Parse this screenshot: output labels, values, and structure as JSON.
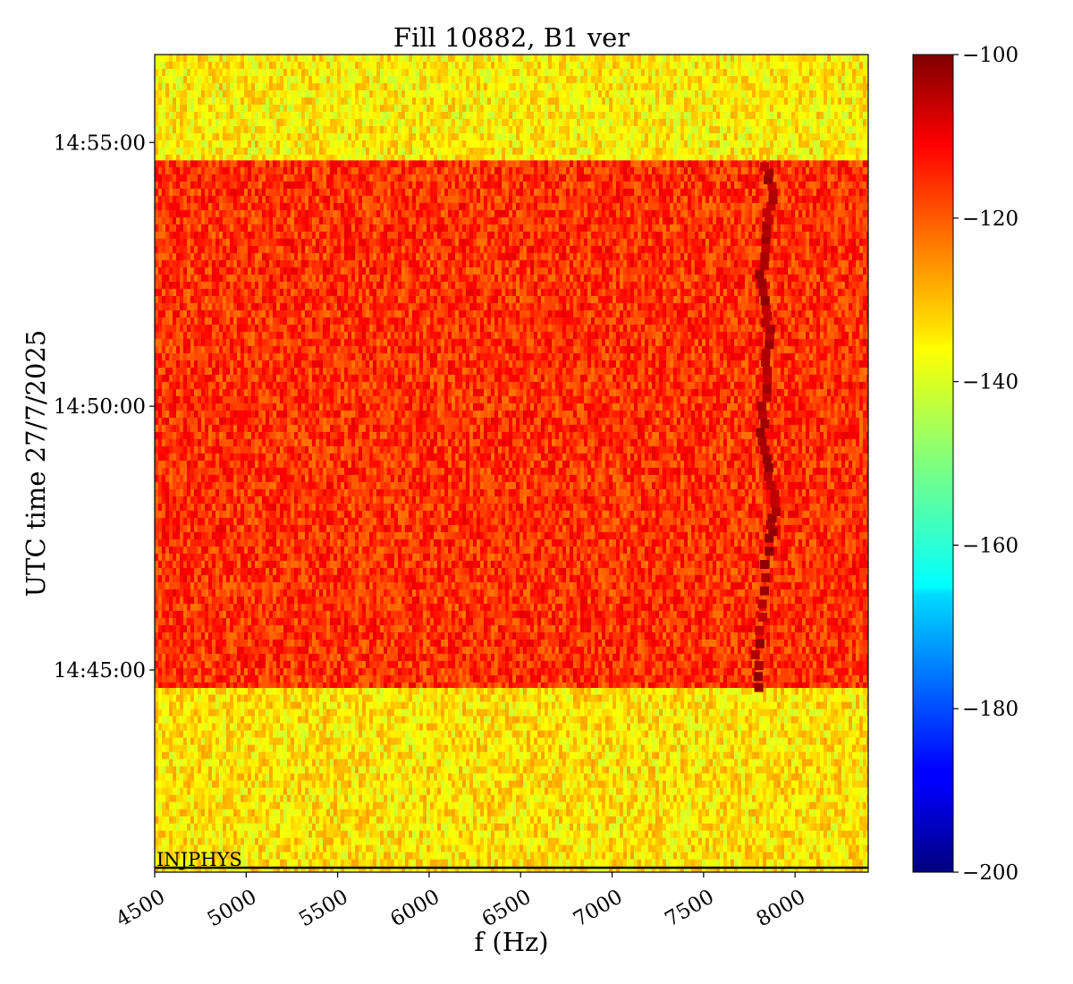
{
  "chart_data": {
    "type": "heatmap",
    "title": "Fill 10882, B1 ver",
    "xlabel": "f (Hz)",
    "ylabel": "UTC time 27/7/2025",
    "x_range": [
      4500,
      8400
    ],
    "x_ticks": [
      4500,
      5000,
      5500,
      6000,
      6500,
      7000,
      7500,
      8000
    ],
    "x_tick_labels": [
      "4500",
      "5000",
      "5500",
      "6000",
      "6500",
      "7000",
      "7500",
      "8000"
    ],
    "y_range": [
      "14:41:10",
      "14:56:40"
    ],
    "y_ticks": [
      "14:45:00",
      "14:50:00",
      "14:55:00"
    ],
    "y_tick_labels": [
      "14:45:00",
      "14:50:00",
      "14:55:00"
    ],
    "colorbar": {
      "colormap": "jet",
      "range": [
        -200,
        -100
      ],
      "ticks": [
        -100,
        -120,
        -140,
        -160,
        -180,
        -200
      ],
      "tick_labels": [
        "−100",
        "−120",
        "−140",
        "−160",
        "−180",
        "−200"
      ]
    },
    "segments": [
      {
        "start": "14:41:10",
        "end": "14:44:40",
        "mean_level_db": -135
      },
      {
        "start": "14:44:40",
        "end": "14:54:40",
        "mean_level_db": -117
      },
      {
        "start": "14:54:40",
        "end": "14:56:40",
        "mean_level_db": -136
      }
    ],
    "tune_line": {
      "points": [
        [
          "14:44:40",
          7790
        ],
        [
          "14:45:30",
          7800
        ],
        [
          "14:46:30",
          7820
        ],
        [
          "14:47:30",
          7870
        ],
        [
          "14:48:00",
          7890
        ],
        [
          "14:48:40",
          7860
        ],
        [
          "14:49:20",
          7810
        ],
        [
          "14:50:00",
          7830
        ],
        [
          "14:50:40",
          7850
        ],
        [
          "14:51:20",
          7860
        ],
        [
          "14:51:50",
          7830
        ],
        [
          "14:52:30",
          7820
        ],
        [
          "14:53:10",
          7830
        ],
        [
          "14:53:40",
          7860
        ],
        [
          "14:54:10",
          7880
        ],
        [
          "14:54:40",
          7830
        ]
      ],
      "level_db": -104
    },
    "annotation": "INJPHYS"
  }
}
